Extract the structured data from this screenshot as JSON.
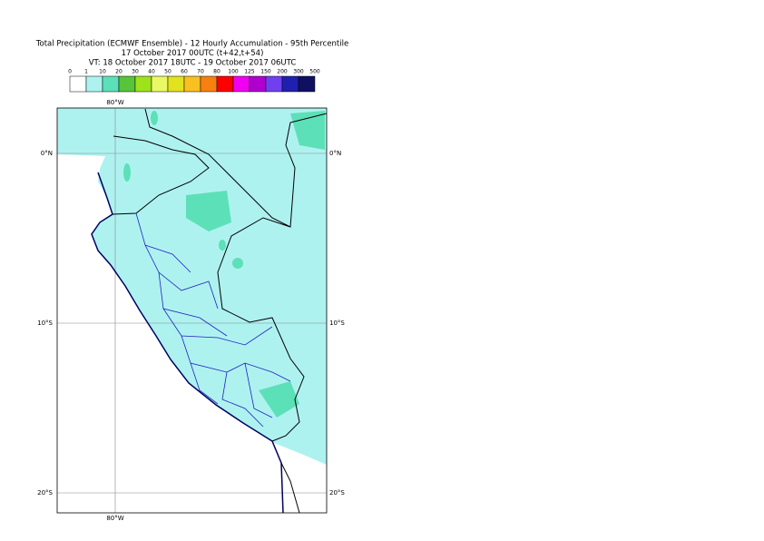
{
  "header": {
    "title_lines": [
      "Total Precipitation (ECMWF Ensemble) - 12 Hourly Accumulation - 95th Percentile",
      "17 October 2017 00UTC (t+42,t+54)",
      "VT: 18 October 2017 18UTC - 19 October 2017 06UTC"
    ]
  },
  "legend": {
    "labels": [
      "0",
      "1",
      "10",
      "20",
      "30",
      "40",
      "50",
      "60",
      "70",
      "80",
      "100",
      "125",
      "150",
      "200",
      "300",
      "500"
    ],
    "colors": [
      "#ffffff",
      "#aef2f0",
      "#5ce0b8",
      "#58c43a",
      "#9ee21a",
      "#eaf866",
      "#e2e21e",
      "#f8c020",
      "#f88010",
      "#ff0000",
      "#f000f0",
      "#b000d0",
      "#7040f0",
      "#2020b0",
      "#101060"
    ]
  },
  "map": {
    "lon_labels": [
      "80°W"
    ],
    "lat_labels": [
      "0°N",
      "10°S",
      "20°S"
    ]
  }
}
